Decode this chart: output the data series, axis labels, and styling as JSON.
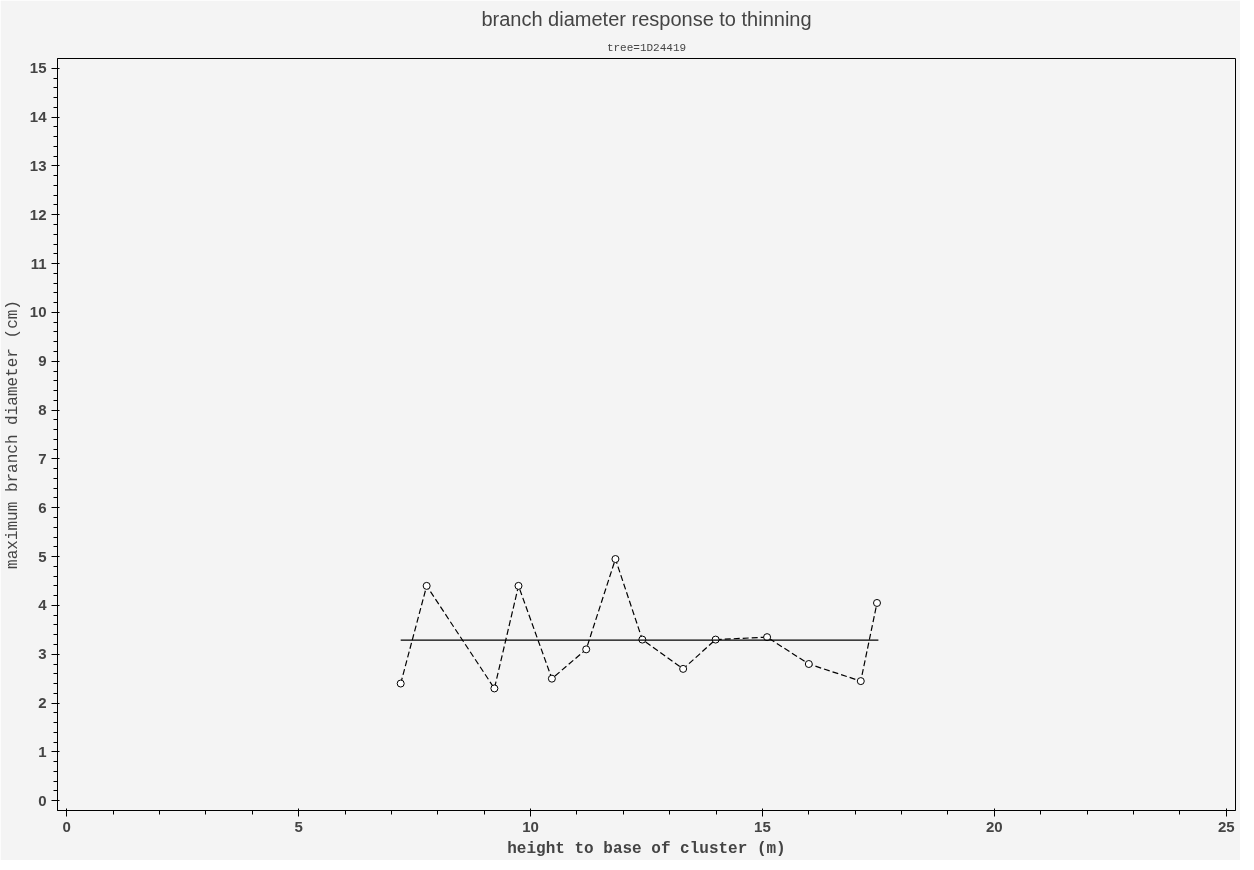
{
  "chart_data": {
    "type": "line",
    "title": "branch diameter response to thinning",
    "subtitle": "tree=1D24419",
    "xlabel": "height to base of cluster (m)",
    "ylabel": "maximum branch diameter (cm)",
    "xlim": [
      -0.2,
      25.2
    ],
    "xticks": [
      0,
      5,
      10,
      15,
      20,
      25
    ],
    "ylim": [
      -0.2,
      15.2
    ],
    "yticks": [
      0,
      1,
      2,
      3,
      4,
      5,
      6,
      7,
      8,
      9,
      10,
      11,
      12,
      13,
      14,
      15
    ],
    "grid": false,
    "series": [
      {
        "color": "#000000",
        "marker": "circle",
        "line_style": "dashed",
        "x": [
          7.2,
          7.76,
          9.22,
          9.74,
          10.46,
          11.2,
          11.83,
          12.41,
          13.29,
          13.99,
          15.1,
          16.0,
          17.12,
          17.47
        ],
        "values": [
          2.4,
          4.4,
          2.3,
          4.4,
          2.5,
          3.1,
          4.95,
          3.3,
          2.7,
          3.3,
          3.35,
          2.8,
          2.45,
          4.05
        ]
      },
      {
        "color": "#000000",
        "marker": "none",
        "line_style": "solid",
        "x": [
          7.2,
          17.5
        ],
        "values": [
          3.29,
          3.29
        ]
      }
    ]
  }
}
